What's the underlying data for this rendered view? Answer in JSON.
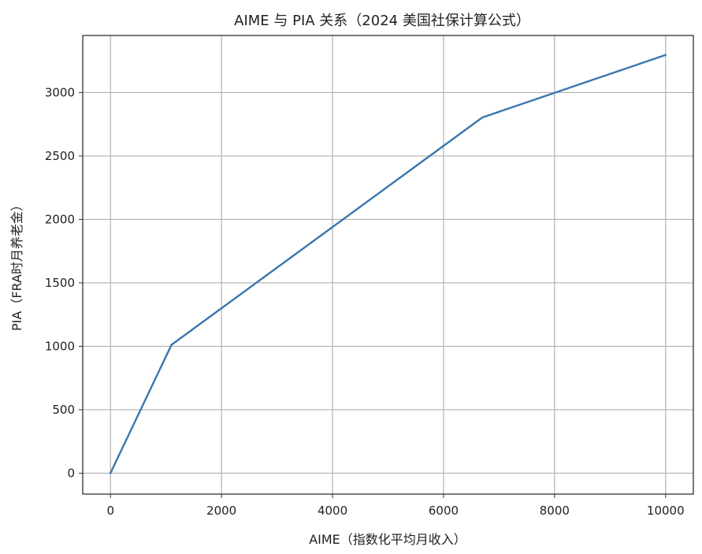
{
  "chart_data": {
    "type": "line",
    "title": "AIME 与 PIA 关系（2024 美国社保计算公式）",
    "xlabel": "AIME（指数化平均月收入）",
    "ylabel": "PIA（FRA时月养老金）",
    "xlim": [
      -500,
      10500
    ],
    "ylim": [
      -165,
      3450
    ],
    "xticks": [
      0,
      2000,
      4000,
      6000,
      8000,
      10000
    ],
    "yticks": [
      0,
      500,
      1000,
      1500,
      2000,
      2500,
      3000
    ],
    "grid": true,
    "series": [
      {
        "color": "#3a76b0",
        "x": [
          0,
          1100,
          6700,
          10000
        ],
        "y": [
          0,
          1012,
          2804,
          3296
        ]
      }
    ]
  }
}
